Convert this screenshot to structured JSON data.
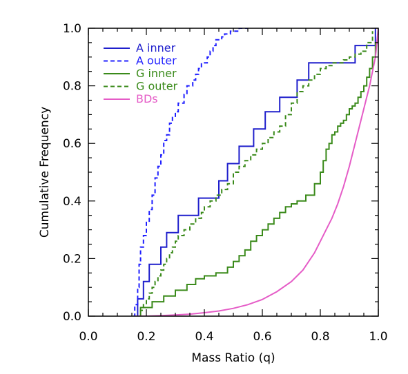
{
  "chart_data": {
    "type": "line",
    "title": "",
    "xlabel": "Mass Ratio (q)",
    "ylabel": "Cumulative Frequency",
    "xlim": [
      0.0,
      1.0
    ],
    "ylim": [
      0.0,
      1.0
    ],
    "x_ticks": [
      "0.0",
      "0.2",
      "0.4",
      "0.6",
      "0.8",
      "1.0"
    ],
    "y_ticks": [
      "0.0",
      "0.2",
      "0.4",
      "0.6",
      "0.8",
      "1.0"
    ],
    "grid": false,
    "legend": {
      "placement": "top-left",
      "entries": [
        "A inner",
        "A outer",
        "G inner",
        "G outer",
        "BDs"
      ]
    },
    "series": [
      {
        "name": "A inner",
        "color": "#1f1fcc",
        "dash": "solid",
        "step": true,
        "x": [
          0.16,
          0.17,
          0.19,
          0.21,
          0.25,
          0.27,
          0.31,
          0.38,
          0.45,
          0.48,
          0.52,
          0.57,
          0.61,
          0.66,
          0.72,
          0.76,
          0.81,
          0.84,
          0.88,
          0.92,
          0.95,
          0.99
        ],
        "y": [
          0.0,
          0.06,
          0.12,
          0.18,
          0.24,
          0.29,
          0.35,
          0.41,
          0.47,
          0.53,
          0.59,
          0.65,
          0.71,
          0.76,
          0.82,
          0.88,
          0.88,
          0.88,
          0.88,
          0.94,
          0.94,
          1.0
        ]
      },
      {
        "name": "A outer",
        "color": "#1f1fff",
        "dash": "dashed",
        "step": true,
        "x": [
          0.155,
          0.16,
          0.17,
          0.175,
          0.18,
          0.19,
          0.2,
          0.21,
          0.22,
          0.23,
          0.24,
          0.25,
          0.26,
          0.27,
          0.28,
          0.29,
          0.3,
          0.31,
          0.33,
          0.34,
          0.36,
          0.37,
          0.38,
          0.39,
          0.41,
          0.42,
          0.43,
          0.44,
          0.46,
          0.47,
          0.49,
          0.5,
          0.52,
          0.53,
          0.55
        ],
        "y": [
          0.0,
          0.04,
          0.1,
          0.18,
          0.24,
          0.28,
          0.33,
          0.37,
          0.42,
          0.48,
          0.52,
          0.56,
          0.61,
          0.63,
          0.67,
          0.69,
          0.71,
          0.74,
          0.77,
          0.8,
          0.82,
          0.84,
          0.86,
          0.88,
          0.9,
          0.92,
          0.94,
          0.96,
          0.97,
          0.98,
          0.99,
          0.99,
          1.0,
          1.0,
          1.0
        ]
      },
      {
        "name": "G inner",
        "color": "#3a8a1a",
        "dash": "solid",
        "step": true,
        "x": [
          0.17,
          0.18,
          0.22,
          0.26,
          0.3,
          0.34,
          0.37,
          0.4,
          0.44,
          0.48,
          0.5,
          0.52,
          0.54,
          0.56,
          0.58,
          0.6,
          0.62,
          0.64,
          0.66,
          0.68,
          0.7,
          0.72,
          0.75,
          0.78,
          0.8,
          0.81,
          0.82,
          0.83,
          0.84,
          0.85,
          0.86,
          0.87,
          0.88,
          0.89,
          0.9,
          0.91,
          0.92,
          0.93,
          0.94,
          0.95,
          0.96,
          0.97,
          0.98,
          0.99,
          1.0
        ],
        "y": [
          0.0,
          0.03,
          0.05,
          0.07,
          0.09,
          0.11,
          0.13,
          0.14,
          0.15,
          0.17,
          0.19,
          0.21,
          0.23,
          0.26,
          0.28,
          0.3,
          0.32,
          0.34,
          0.36,
          0.38,
          0.39,
          0.4,
          0.42,
          0.46,
          0.5,
          0.54,
          0.58,
          0.6,
          0.63,
          0.64,
          0.66,
          0.67,
          0.68,
          0.7,
          0.72,
          0.73,
          0.74,
          0.76,
          0.78,
          0.8,
          0.83,
          0.86,
          0.9,
          0.95,
          1.0
        ]
      },
      {
        "name": "G outer",
        "color": "#3a8a1a",
        "dash": "dashed",
        "step": true,
        "x": [
          0.17,
          0.18,
          0.19,
          0.2,
          0.21,
          0.22,
          0.23,
          0.24,
          0.25,
          0.26,
          0.27,
          0.28,
          0.29,
          0.3,
          0.31,
          0.33,
          0.35,
          0.37,
          0.39,
          0.4,
          0.42,
          0.44,
          0.46,
          0.48,
          0.5,
          0.52,
          0.54,
          0.56,
          0.58,
          0.6,
          0.62,
          0.64,
          0.66,
          0.68,
          0.7,
          0.72,
          0.74,
          0.76,
          0.78,
          0.8,
          0.82,
          0.84,
          0.86,
          0.88,
          0.9,
          0.92,
          0.94,
          0.96,
          0.98
        ],
        "y": [
          0.0,
          0.02,
          0.04,
          0.06,
          0.08,
          0.1,
          0.12,
          0.14,
          0.16,
          0.18,
          0.2,
          0.22,
          0.24,
          0.26,
          0.28,
          0.3,
          0.32,
          0.34,
          0.36,
          0.38,
          0.4,
          0.42,
          0.44,
          0.46,
          0.5,
          0.52,
          0.54,
          0.56,
          0.58,
          0.6,
          0.62,
          0.64,
          0.66,
          0.7,
          0.74,
          0.78,
          0.8,
          0.82,
          0.84,
          0.86,
          0.87,
          0.88,
          0.88,
          0.89,
          0.9,
          0.91,
          0.92,
          0.95,
          0.99
        ]
      },
      {
        "name": "BDs",
        "color": "#e55cc7",
        "dash": "solid",
        "step": false,
        "x": [
          0.16,
          0.2,
          0.25,
          0.3,
          0.35,
          0.4,
          0.45,
          0.5,
          0.55,
          0.6,
          0.65,
          0.7,
          0.72,
          0.74,
          0.76,
          0.78,
          0.8,
          0.82,
          0.84,
          0.86,
          0.88,
          0.9,
          0.92,
          0.94,
          0.96,
          0.97,
          0.98,
          0.99,
          1.0
        ],
        "y": [
          0.0,
          0.0,
          0.002,
          0.004,
          0.007,
          0.012,
          0.018,
          0.027,
          0.04,
          0.058,
          0.085,
          0.12,
          0.14,
          0.16,
          0.19,
          0.22,
          0.26,
          0.3,
          0.34,
          0.39,
          0.45,
          0.52,
          0.6,
          0.68,
          0.76,
          0.8,
          0.85,
          0.9,
          1.0
        ]
      }
    ]
  }
}
